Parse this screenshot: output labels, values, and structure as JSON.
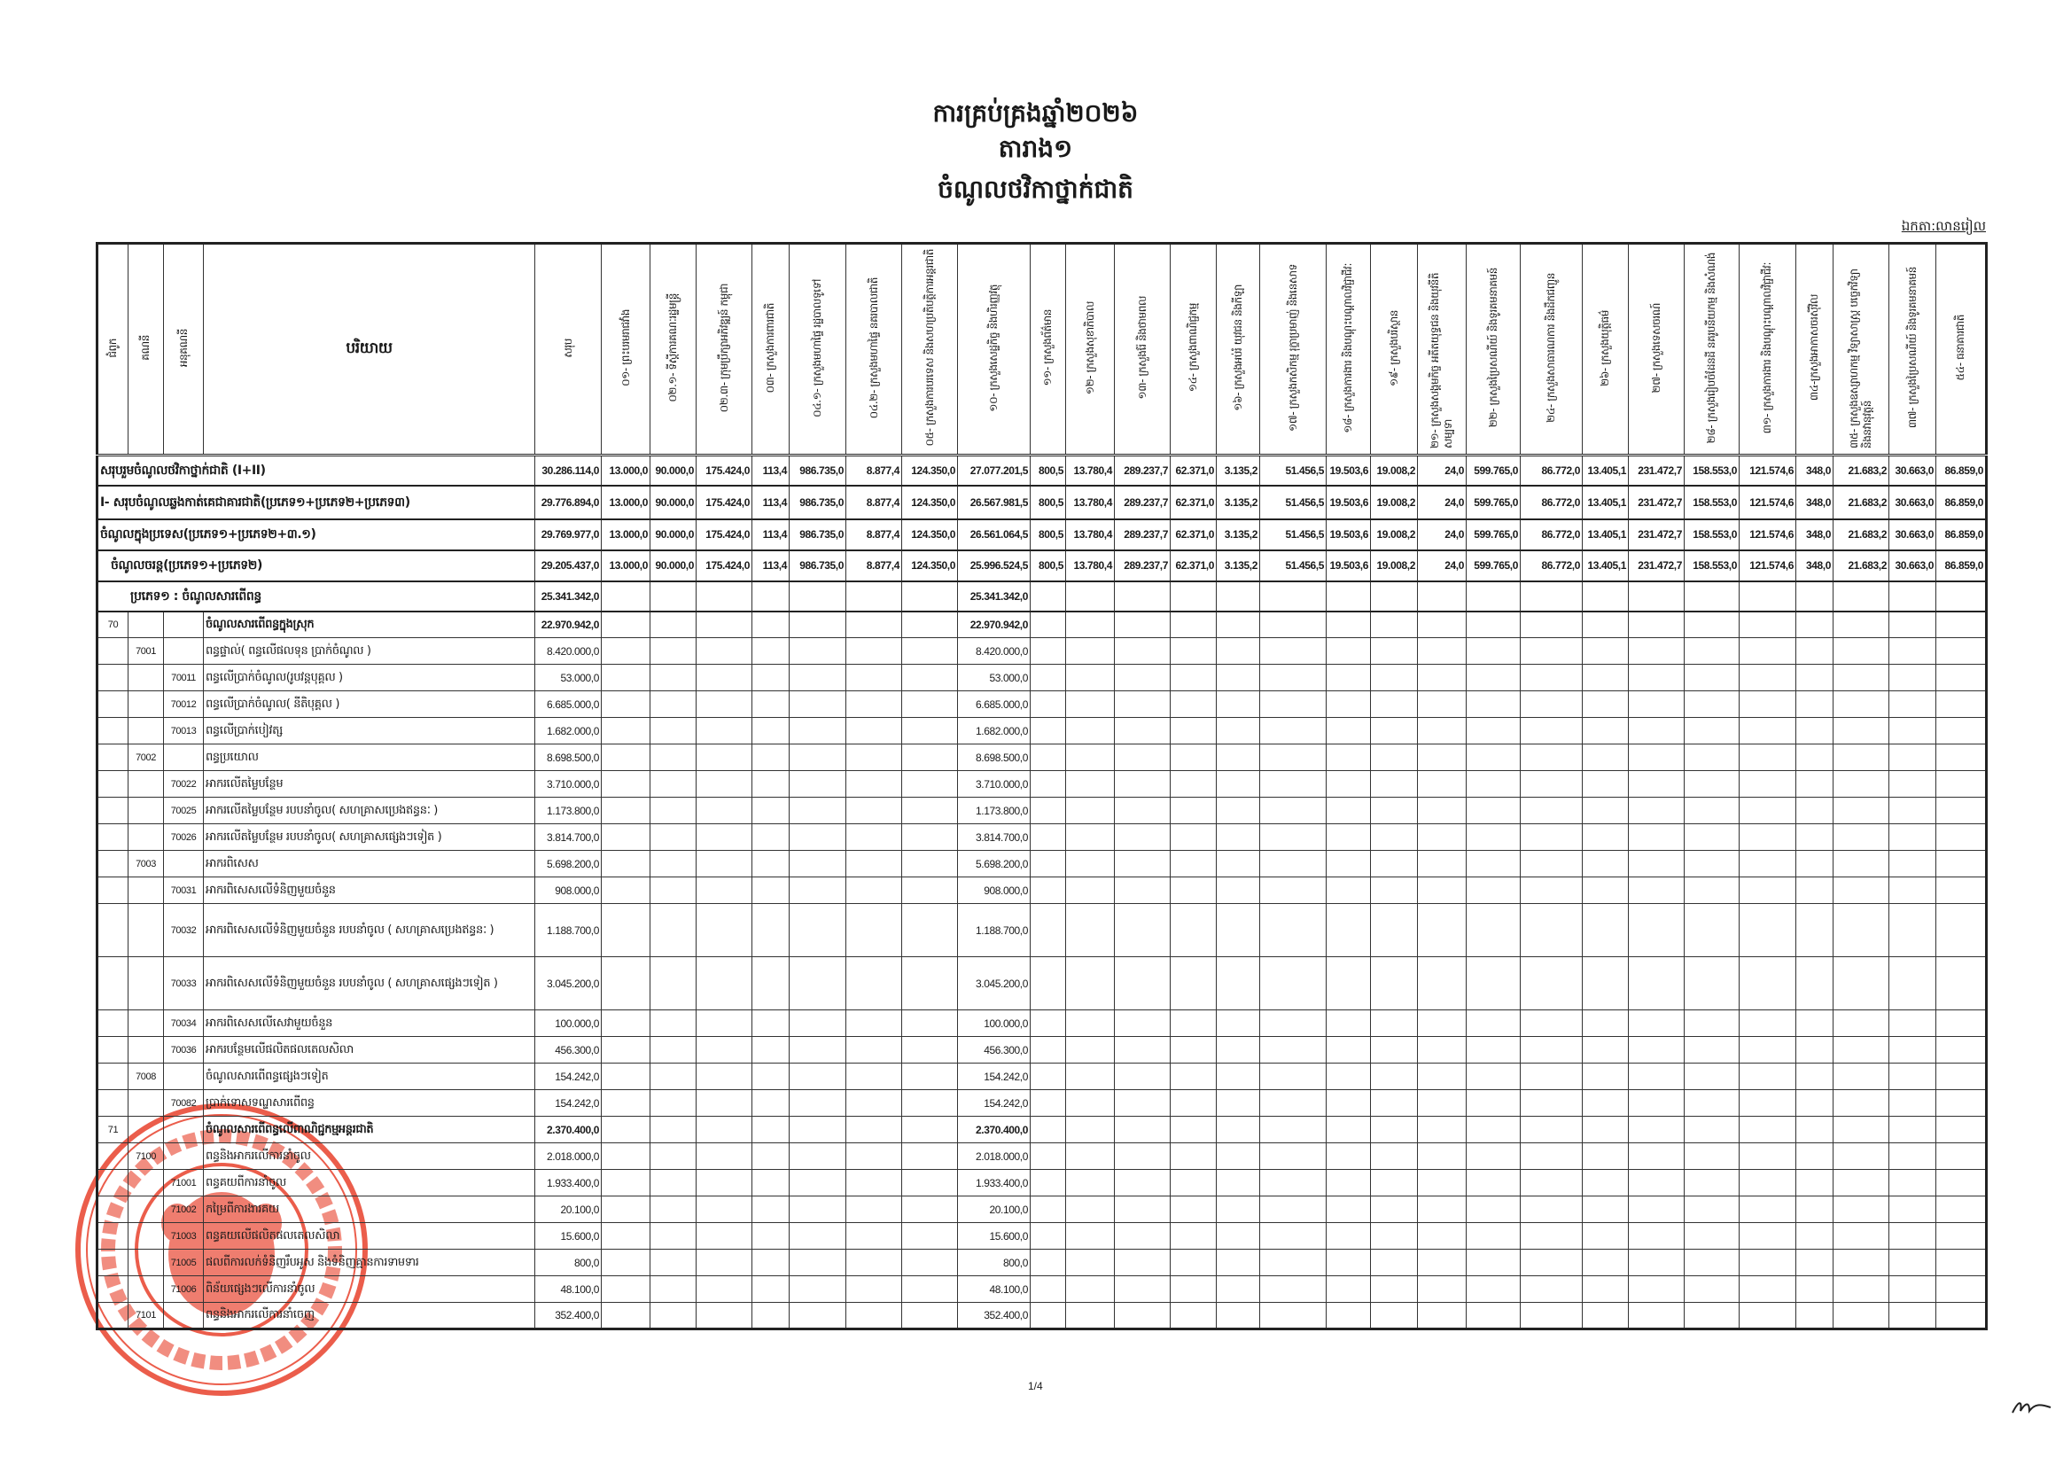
{
  "document": {
    "title_lines": [
      "ការគ្រប់គ្រងឆ្នាំ២០២៦",
      "តារាង១",
      "ចំណូលថវិកាថ្នាក់ជាតិ"
    ],
    "unit": "ឯកតា:លានរៀល",
    "page_number": "1/4",
    "stamp_text": [
      "ROYAUME DU CAMBODGE",
      "LE MINISTRE DU PALAIS ROYAL"
    ],
    "stamp_color": "#e8412c"
  },
  "table": {
    "headers": {
      "chapter": "ជំពូក",
      "account": "គណនី",
      "sub_account": "អនុគណនី",
      "description": "បរិយាយ",
      "total": "សរុប",
      "ministries": [
        "០១- ព្រះបរមរាជវាំង",
        "០២.១- ទីស្តីការគណៈរដ្ឋមន្ត្រី",
        "០២.៣- ក្រុមប្រឹក្សាអភិវឌ្ឍន៍ កម្ពុជា",
        "០៣- ក្រសួងការពារជាតិ",
        "០៤.១- ក្រសួងមហាផ្ទៃ រដ្ឋបាលទូទៅ",
        "០៤.២- ក្រសួងមហាផ្ទៃ នគរបាលជាតិ",
        "០៥- ក្រសួងការបរទេស និងសហប្រតិបត្តិការអន្តរជាតិ",
        "១០- ក្រសួងសេដ្ឋកិច្ច និងហិរញ្ញវត្ថុ",
        "១១- ក្រសួងព័ត៌មាន",
        "១២- ក្រសួងសុខាភិបាល",
        "១៣- ក្រសួងរ៉ែ និងថាមពល",
        "១៤- ក្រសួងពាណិជ្ជកម្ម",
        "១៦- ក្រសួងអប់រំ យុវជន និងកីឡា",
        "១៧- ក្រសួងកសិកម្ម រុក្ខាប្រមាញ់ និងនេសាទ",
        "១៨- ក្រសួងការងារ និងបណ្តុះបណ្តាលវិជ្ជាជីវៈ",
        "១៩- ក្រសួងបរិស្ថាន",
        "២១- ក្រសួងសង្គមកិច្ច អតីតយុទ្ធជន និងយុវនីតិសម្បទា",
        "២២- ក្រសួងប្រៃសណីយ៍ និងទូរគមនាគមន៍",
        "២៤- ក្រសួងសាធារណការ និងដឹកជញ្ជូន",
        "២៦- ក្រសួងយុត្តិធម៌",
        "២៧- ក្រសួងទេសចរណ៍",
        "២៨- ក្រសួងរៀបចំដែនដី នគរូបនីយកម្ម និងសំណង់",
        "៣១- ក្រសួងការងារ និងបណ្តុះបណ្តាលវិជ្ជាជីវៈ",
        "៣៤-ក្រសួងអាកាសចរស៊ីវិល",
        "៣៥- ក្រសួងឧស្សាហកម្ម វិទ្យាសាស្ត្រ បច្ចេកវិទ្យា និងនវានុវត្តន៍",
        "៣៧- ក្រសួងប្រៃសណីយ៍ និងទូរគមនាគមន៍",
        "៥៤- ធនាគារជាតិ"
      ]
    },
    "summary_rows": [
      {
        "description": "សរុបរួមចំណូលថវិកាថ្នាក់ជាតិ (I+II)",
        "total": "30.286.114,0",
        "values": [
          "13.000,0",
          "90.000,0",
          "175.424,0",
          "113,4",
          "986.735,0",
          "8.877,4",
          "124.350,0",
          "27.077.201,5",
          "800,5",
          "13.780,4",
          "289.237,7",
          "62.371,0",
          "3.135,2",
          "51.456,5",
          "19.503,6",
          "19.008,2",
          "24,0",
          "599.765,0",
          "86.772,0",
          "13.405,1",
          "231.472,7",
          "158.553,0",
          "121.574,6",
          "348,0",
          "21.683,2",
          "30.663,0",
          "86.859,0"
        ]
      },
      {
        "description": "I- សរុបចំណូលឆ្លងកាត់គេជាគារជាតិ(ប្រភេទ១+ប្រភេទ២+ប្រភេទ៣)",
        "total": "29.776.894,0",
        "values": [
          "13.000,0",
          "90.000,0",
          "175.424,0",
          "113,4",
          "986.735,0",
          "8.877,4",
          "124.350,0",
          "26.567.981,5",
          "800,5",
          "13.780,4",
          "289.237,7",
          "62.371,0",
          "3.135,2",
          "51.456,5",
          "19.503,6",
          "19.008,2",
          "24,0",
          "599.765,0",
          "86.772,0",
          "13.405,1",
          "231.472,7",
          "158.553,0",
          "121.574,6",
          "348,0",
          "21.683,2",
          "30.663,0",
          "86.859,0"
        ]
      },
      {
        "description": "ចំណូលក្នុងប្រទេស(ប្រភេទ១+ប្រភេទ២+៣.១)",
        "total": "29.769.977,0",
        "values": [
          "13.000,0",
          "90.000,0",
          "175.424,0",
          "113,4",
          "986.735,0",
          "8.877,4",
          "124.350,0",
          "26.561.064,5",
          "800,5",
          "13.780,4",
          "289.237,7",
          "62.371,0",
          "3.135,2",
          "51.456,5",
          "19.503,6",
          "19.008,2",
          "24,0",
          "599.765,0",
          "86.772,0",
          "13.405,1",
          "231.472,7",
          "158.553,0",
          "121.574,6",
          "348,0",
          "21.683,2",
          "30.663,0",
          "86.859,0"
        ]
      },
      {
        "description": "ចំណូលចរន្ត(ប្រភេទ១+ប្រភេទ២)",
        "total": "29.205.437,0",
        "values": [
          "13.000,0",
          "90.000,0",
          "175.424,0",
          "113,4",
          "986.735,0",
          "8.877,4",
          "124.350,0",
          "25.996.524,5",
          "800,5",
          "13.780,4",
          "289.237,7",
          "62.371,0",
          "3.135,2",
          "51.456,5",
          "19.503,6",
          "19.008,2",
          "24,0",
          "599.765,0",
          "86.772,0",
          "13.405,1",
          "231.472,7",
          "158.553,0",
          "121.574,6",
          "348,0",
          "21.683,2",
          "30.663,0",
          "86.859,0"
        ]
      },
      {
        "description": "ប្រភេទ១ : ចំណូលសារពើពន្ធ",
        "total": "25.341.342,0",
        "values": [
          "",
          "",
          "",
          "",
          "",
          "",
          "",
          "25.341.342,0",
          "",
          "",
          "",
          "",
          "",
          "",
          "",
          "",
          "",
          "",
          "",
          "",
          "",
          "",
          "",
          "",
          "",
          "",
          ""
        ]
      }
    ],
    "rows": [
      {
        "chapter": "70",
        "account": "",
        "sub_account": "",
        "description": "ចំណូលសារពើពន្ធក្នុងស្រុក",
        "total": "22.970.942,0",
        "mef": "22.970.942,0",
        "bold": true
      },
      {
        "chapter": "",
        "account": "7001",
        "sub_account": "",
        "description": "ពន្ធផ្ទាល់( ពន្ធលើផលទុន ប្រាក់ចំណូល )",
        "total": "8.420.000,0",
        "mef": "8.420.000,0"
      },
      {
        "chapter": "",
        "account": "",
        "sub_account": "70011",
        "description": "ពន្ធលើប្រាក់ចំណូល(រូបវន្តបុគ្គល )",
        "total": "53.000,0",
        "mef": "53.000,0"
      },
      {
        "chapter": "",
        "account": "",
        "sub_account": "70012",
        "description": "ពន្ធលើប្រាក់ចំណូល( នីតិបុគ្គល )",
        "total": "6.685.000,0",
        "mef": "6.685.000,0"
      },
      {
        "chapter": "",
        "account": "",
        "sub_account": "70013",
        "description": "ពន្ធលើប្រាក់បៀវត្ស",
        "total": "1.682.000,0",
        "mef": "1.682.000,0"
      },
      {
        "chapter": "",
        "account": "7002",
        "sub_account": "",
        "description": "ពន្ធប្រយោល",
        "total": "8.698.500,0",
        "mef": "8.698.500,0"
      },
      {
        "chapter": "",
        "account": "",
        "sub_account": "70022",
        "description": "អាករលើតម្លៃបន្ថែម",
        "total": "3.710.000,0",
        "mef": "3.710.000,0"
      },
      {
        "chapter": "",
        "account": "",
        "sub_account": "70025",
        "description": "អាករលើតម្លៃបន្ថែម របបនាំចូល( សហគ្រាសប្រេងឥន្ធនៈ )",
        "total": "1.173.800,0",
        "mef": "1.173.800,0"
      },
      {
        "chapter": "",
        "account": "",
        "sub_account": "70026",
        "description": "អាករលើតម្លៃបន្ថែម របបនាំចូល( សហគ្រាសផ្សេងៗទៀត )",
        "total": "3.814.700,0",
        "mef": "3.814.700,0"
      },
      {
        "chapter": "",
        "account": "7003",
        "sub_account": "",
        "description": "អាករពិសេស",
        "total": "5.698.200,0",
        "mef": "5.698.200,0"
      },
      {
        "chapter": "",
        "account": "",
        "sub_account": "70031",
        "description": "អាករពិសេសលើទំនិញមួយចំនួន",
        "total": "908.000,0",
        "mef": "908.000,0"
      },
      {
        "chapter": "",
        "account": "",
        "sub_account": "70032",
        "description": "អាករពិសេសលើទំនិញមួយចំនួន របបនាំចូល ( សហគ្រាសប្រេងឥន្ធនៈ )",
        "total": "1.188.700,0",
        "mef": "1.188.700,0",
        "tall": true
      },
      {
        "chapter": "",
        "account": "",
        "sub_account": "70033",
        "description": "អាករពិសេសលើទំនិញមួយចំនួន របបនាំចូល ( សហគ្រាសផ្សេងៗទៀត )",
        "total": "3.045.200,0",
        "mef": "3.045.200,0",
        "tall": true
      },
      {
        "chapter": "",
        "account": "",
        "sub_account": "70034",
        "description": "អាករពិសេសលើសេវាមួយចំនួន",
        "total": "100.000,0",
        "mef": "100.000,0"
      },
      {
        "chapter": "",
        "account": "",
        "sub_account": "70036",
        "description": "អាករបន្ថែមលើផលិតផលតេលសិលា",
        "total": "456.300,0",
        "mef": "456.300,0"
      },
      {
        "chapter": "",
        "account": "7008",
        "sub_account": "",
        "description": "ចំណូលសារពើពន្ធផ្សេងៗទៀត",
        "total": "154.242,0",
        "mef": "154.242,0"
      },
      {
        "chapter": "",
        "account": "",
        "sub_account": "70082",
        "description": "ប្រាក់ទោសទណ្ឌសារពើពន្ធ",
        "total": "154.242,0",
        "mef": "154.242,0"
      },
      {
        "chapter": "71",
        "account": "",
        "sub_account": "",
        "description": "ចំណូលសារពើពន្ធលើពាណិជ្ជកម្មអន្តរជាតិ",
        "total": "2.370.400,0",
        "mef": "2.370.400,0",
        "bold": true
      },
      {
        "chapter": "",
        "account": "7100",
        "sub_account": "",
        "description": "ពន្ធនិងអាករលើការនាំចូល",
        "total": "2.018.000,0",
        "mef": "2.018.000,0"
      },
      {
        "chapter": "",
        "account": "",
        "sub_account": "71001",
        "description": "ពន្ធគយពីការនាំចូល",
        "total": "1.933.400,0",
        "mef": "1.933.400,0"
      },
      {
        "chapter": "",
        "account": "",
        "sub_account": "71002",
        "description": "កម្រៃពីការងារគយ",
        "total": "20.100,0",
        "mef": "20.100,0"
      },
      {
        "chapter": "",
        "account": "",
        "sub_account": "71003",
        "description": "ពន្ធគយលើផលិតផលតេលសិលា",
        "total": "15.600,0",
        "mef": "15.600,0"
      },
      {
        "chapter": "",
        "account": "",
        "sub_account": "71005",
        "description": "ផលពីការលក់ទំនិញរឹបអូស និងទំនិញគ្មានការទាមទារ",
        "total": "800,0",
        "mef": "800,0"
      },
      {
        "chapter": "",
        "account": "",
        "sub_account": "71006",
        "description": "ពិន័យផ្សេងៗលើការនាំចូល",
        "total": "48.100,0",
        "mef": "48.100,0"
      },
      {
        "chapter": "",
        "account": "7101",
        "sub_account": "",
        "description": "ពន្ធនិងអាករលើការនាំចេញ",
        "total": "352.400,0",
        "mef": "352.400,0"
      }
    ]
  }
}
